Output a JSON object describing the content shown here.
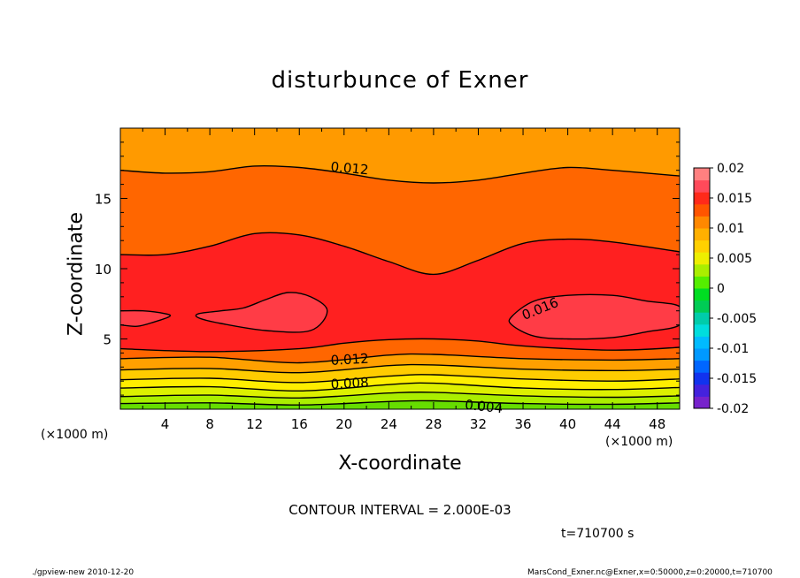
{
  "page": {
    "title": "disturbunce of Exner",
    "xlabel": "X-coordinate",
    "ylabel": "Z-coordinate",
    "x_unit_left": "(×1000 m)",
    "x_unit_right": "(×1000 m)",
    "contour_interval": "CONTOUR INTERVAL = 2.000E-03",
    "time_label": "t=710700  s",
    "footer_left": "./gpview-new   2010-12-20",
    "footer_right": "MarsCond_Exner.nc@Exner,x=0:50000,z=0:20000,t=710700"
  },
  "chart_data": {
    "type": "heatmap",
    "title": "disturbunce of Exner",
    "xlabel": "X-coordinate",
    "ylabel": "Z-coordinate",
    "x_range": [
      0,
      50
    ],
    "y_range": [
      0,
      20
    ],
    "x_ticks": [
      4,
      8,
      12,
      16,
      20,
      24,
      28,
      32,
      36,
      40,
      44,
      48
    ],
    "y_ticks": [
      5,
      10,
      15
    ],
    "contour_interval": 0.002,
    "contours": [
      {
        "level": 0.002,
        "points": [
          [
            0,
            0.4
          ],
          [
            8,
            0.45
          ],
          [
            16,
            0.3
          ],
          [
            24,
            0.55
          ],
          [
            28,
            0.6
          ],
          [
            36,
            0.4
          ],
          [
            44,
            0.35
          ],
          [
            50,
            0.45
          ]
        ]
      },
      {
        "level": 0.004,
        "points": [
          [
            0,
            0.9
          ],
          [
            8,
            1.0
          ],
          [
            16,
            0.8
          ],
          [
            24,
            1.15
          ],
          [
            28,
            1.2
          ],
          [
            36,
            0.95
          ],
          [
            44,
            0.85
          ],
          [
            50,
            0.95
          ]
        ]
      },
      {
        "level": 0.006,
        "points": [
          [
            0,
            1.5
          ],
          [
            8,
            1.6
          ],
          [
            16,
            1.3
          ],
          [
            24,
            1.75
          ],
          [
            28,
            1.85
          ],
          [
            36,
            1.5
          ],
          [
            44,
            1.4
          ],
          [
            50,
            1.55
          ]
        ]
      },
      {
        "level": 0.008,
        "points": [
          [
            0,
            2.1
          ],
          [
            8,
            2.2
          ],
          [
            16,
            1.9
          ],
          [
            24,
            2.35
          ],
          [
            28,
            2.45
          ],
          [
            36,
            2.15
          ],
          [
            44,
            2.0
          ],
          [
            50,
            2.15
          ]
        ]
      },
      {
        "level": 0.01,
        "points": [
          [
            0,
            2.8
          ],
          [
            8,
            2.9
          ],
          [
            16,
            2.6
          ],
          [
            24,
            3.1
          ],
          [
            28,
            3.15
          ],
          [
            36,
            2.85
          ],
          [
            44,
            2.75
          ],
          [
            50,
            2.85
          ]
        ]
      },
      {
        "level": 0.012,
        "points": [
          [
            0,
            3.6
          ],
          [
            8,
            3.7
          ],
          [
            16,
            3.3
          ],
          [
            24,
            3.85
          ],
          [
            28,
            3.9
          ],
          [
            36,
            3.6
          ],
          [
            44,
            3.5
          ],
          [
            50,
            3.6
          ]
        ]
      },
      {
        "level": 0.014,
        "points": [
          [
            0,
            4.3
          ],
          [
            8,
            4.1
          ],
          [
            16,
            4.3
          ],
          [
            20,
            4.7
          ],
          [
            24,
            4.95
          ],
          [
            28,
            5.0
          ],
          [
            32,
            4.85
          ],
          [
            36,
            4.5
          ],
          [
            44,
            4.2
          ],
          [
            50,
            4.4
          ]
        ]
      },
      {
        "level": 0.014,
        "points": [
          [
            0,
            11.0
          ],
          [
            4,
            11.0
          ],
          [
            8,
            11.6
          ],
          [
            12,
            12.5
          ],
          [
            16,
            12.4
          ],
          [
            20,
            11.6
          ],
          [
            24,
            10.5
          ],
          [
            28,
            9.6
          ],
          [
            32,
            10.6
          ],
          [
            36,
            11.8
          ],
          [
            40,
            12.1
          ],
          [
            44,
            11.9
          ],
          [
            50,
            11.2
          ]
        ]
      },
      {
        "level": 0.012,
        "points": [
          [
            0,
            17.0
          ],
          [
            4,
            16.8
          ],
          [
            8,
            16.9
          ],
          [
            12,
            17.3
          ],
          [
            16,
            17.2
          ],
          [
            20,
            16.8
          ],
          [
            24,
            16.3
          ],
          [
            28,
            16.1
          ],
          [
            32,
            16.3
          ],
          [
            36,
            16.8
          ],
          [
            40,
            17.2
          ],
          [
            44,
            17.0
          ],
          [
            50,
            16.6
          ]
        ]
      },
      {
        "level": 0.016,
        "closed": true,
        "points": [
          [
            7,
            6.8
          ],
          [
            9,
            7.0
          ],
          [
            11,
            7.2
          ],
          [
            13,
            7.8
          ],
          [
            15,
            8.3
          ],
          [
            17,
            8.0
          ],
          [
            18.5,
            7.0
          ],
          [
            17,
            5.6
          ],
          [
            13,
            5.6
          ],
          [
            9,
            6.1
          ],
          [
            7,
            6.5
          ]
        ]
      },
      {
        "level": 0.016,
        "closed": false,
        "points": [
          [
            0,
            7.0
          ],
          [
            2,
            7.0
          ],
          [
            4,
            6.8
          ],
          [
            4.4,
            6.6
          ],
          [
            3,
            6.2
          ],
          [
            1.5,
            5.9
          ],
          [
            0,
            6.0
          ]
        ]
      },
      {
        "level": 0.016,
        "closed": true,
        "points": [
          [
            35,
            6.6
          ],
          [
            37,
            7.7
          ],
          [
            40,
            8.1
          ],
          [
            44,
            8.1
          ],
          [
            47,
            7.7
          ],
          [
            50,
            7.3
          ],
          [
            50,
            6.0
          ],
          [
            47,
            5.5
          ],
          [
            44,
            5.1
          ],
          [
            40,
            5.0
          ],
          [
            37,
            5.2
          ],
          [
            35,
            6.0
          ]
        ]
      }
    ],
    "bands": [
      {
        "lo": 0.0,
        "hi": 0.002,
        "color": "#66dd00"
      },
      {
        "lo": 0.002,
        "hi": 0.004,
        "color": "#aaee00"
      },
      {
        "lo": 0.004,
        "hi": 0.006,
        "color": "#ddf000"
      },
      {
        "lo": 0.006,
        "hi": 0.008,
        "color": "#ffee00"
      },
      {
        "lo": 0.008,
        "hi": 0.01,
        "color": "#ffcc00"
      },
      {
        "lo": 0.01,
        "hi": 0.012,
        "color": "#ffa000"
      },
      {
        "lo": 0.012,
        "hi": 0.014,
        "color": "#ff6600"
      },
      {
        "lo": 0.014,
        "hi": 0.016,
        "color": "#ff2020"
      },
      {
        "lo": 0.016,
        "hi": 0.018,
        "color": "#ff3c46"
      },
      {
        "lo": 0.018,
        "hi": 0.02,
        "color": "#ff7070"
      }
    ],
    "top_band_color": "#ff9a00",
    "contour_labels": [
      {
        "text": "0.012",
        "x": 20.5,
        "y": 17.2,
        "angle": 5
      },
      {
        "text": "0.012",
        "x": 20.5,
        "y": 3.6,
        "angle": -3
      },
      {
        "text": "0.008",
        "x": 20.5,
        "y": 1.9,
        "angle": -3
      },
      {
        "text": "0.004",
        "x": 32.5,
        "y": 0.25,
        "angle": 6
      },
      {
        "text": "0.016",
        "x": 37.5,
        "y": 7.2,
        "angle": -22
      }
    ],
    "colorbar": {
      "tick_labels": [
        "0.02",
        "0.015",
        "0.01",
        "0.005",
        "0",
        "-0.005",
        "-0.01",
        "-0.015",
        "-0.02"
      ],
      "tick_values": [
        0.02,
        0.015,
        0.01,
        0.005,
        0,
        -0.005,
        -0.01,
        -0.015,
        -0.02
      ],
      "range": [
        -0.02,
        0.02
      ],
      "colors": [
        "#7722cc",
        "#4422dd",
        "#1133ee",
        "#0066ff",
        "#0099ff",
        "#00bbff",
        "#00dddd",
        "#00ccaa",
        "#00cc55",
        "#00dd22",
        "#55ee00",
        "#aaee00",
        "#eeee00",
        "#ffd000",
        "#ffb000",
        "#ff8800",
        "#ff5500",
        "#ff2a1a",
        "#ff4a5a",
        "#ff8080"
      ]
    }
  }
}
